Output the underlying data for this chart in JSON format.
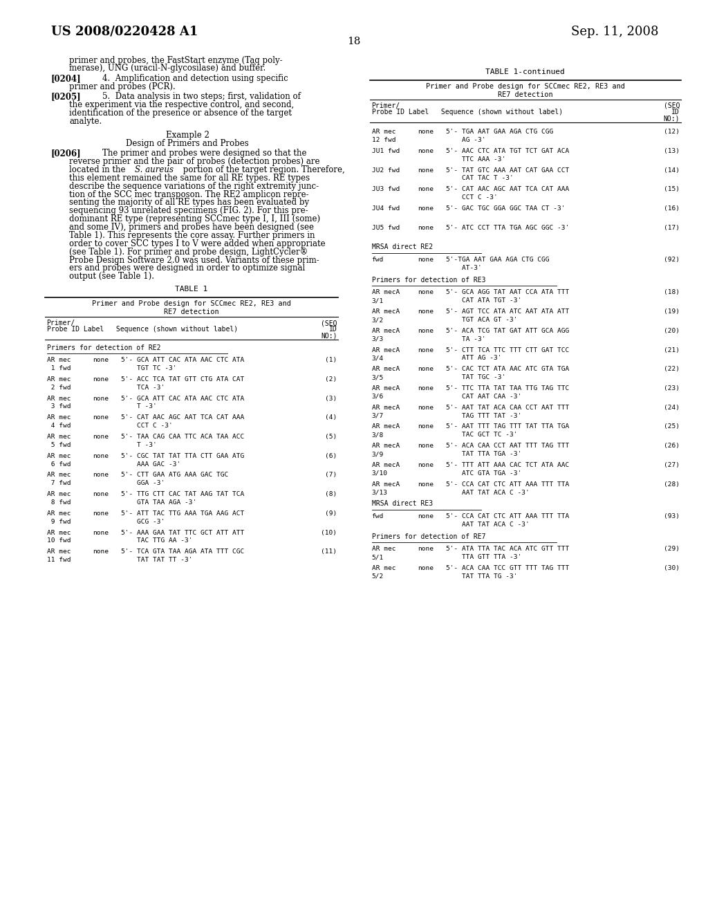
{
  "page_number": "18",
  "header_left": "US 2008/0220428 A1",
  "header_right": "Sep. 11, 2008",
  "body_size": 8.5,
  "table_size": 7.8,
  "mono_size": 6.8
}
